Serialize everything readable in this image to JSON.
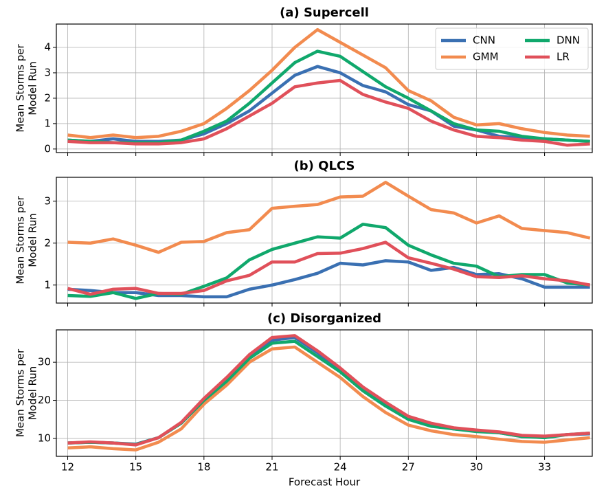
{
  "chart_data": [
    {
      "type": "line",
      "title": "(a) Supercell",
      "ylabel": [
        "Mean Storms per",
        "Model Run"
      ],
      "x": [
        12,
        13,
        14,
        15,
        16,
        17,
        18,
        19,
        20,
        21,
        22,
        23,
        24,
        25,
        26,
        27,
        28,
        29,
        30,
        31,
        32,
        33,
        34,
        35
      ],
      "xlim": [
        11.5,
        35.1
      ],
      "ylim": [
        -0.14,
        4.92
      ],
      "yticks": [
        0,
        1,
        2,
        3,
        4
      ],
      "grid": true,
      "legend": "upper right",
      "series": [
        {
          "name": "CNN",
          "color": "#3a70b2",
          "values": [
            0.35,
            0.3,
            0.4,
            0.3,
            0.3,
            0.35,
            0.6,
            1.0,
            1.5,
            2.2,
            2.9,
            3.25,
            3.0,
            2.5,
            2.25,
            1.75,
            1.5,
            0.9,
            0.75,
            0.5,
            0.45,
            0.4,
            0.35,
            0.3
          ]
        },
        {
          "name": "GMM",
          "color": "#f28b4f",
          "values": [
            0.55,
            0.45,
            0.55,
            0.45,
            0.5,
            0.7,
            1.0,
            1.6,
            2.3,
            3.1,
            4.0,
            4.7,
            4.2,
            3.7,
            3.2,
            2.3,
            1.9,
            1.25,
            0.95,
            1.0,
            0.8,
            0.65,
            0.55,
            0.5
          ]
        },
        {
          "name": "DNN",
          "color": "#10a86c",
          "values": [
            0.35,
            0.3,
            0.25,
            0.25,
            0.25,
            0.35,
            0.7,
            1.1,
            1.8,
            2.6,
            3.4,
            3.85,
            3.65,
            3.05,
            2.45,
            2.0,
            1.5,
            1.0,
            0.75,
            0.7,
            0.5,
            0.4,
            0.35,
            0.3
          ]
        },
        {
          "name": "LR",
          "color": "#e0505a",
          "values": [
            0.3,
            0.25,
            0.25,
            0.2,
            0.2,
            0.25,
            0.4,
            0.8,
            1.3,
            1.8,
            2.45,
            2.6,
            2.7,
            2.15,
            1.85,
            1.6,
            1.1,
            0.75,
            0.5,
            0.45,
            0.35,
            0.3,
            0.15,
            0.2
          ]
        }
      ]
    },
    {
      "type": "line",
      "title": "(b) QLCS",
      "ylabel": [
        "Mean Storms per",
        "Model Run"
      ],
      "x": [
        12,
        13,
        14,
        15,
        16,
        17,
        18,
        19,
        20,
        21,
        22,
        23,
        24,
        25,
        26,
        27,
        28,
        29,
        30,
        31,
        32,
        33,
        34,
        35
      ],
      "xlim": [
        11.5,
        35.1
      ],
      "ylim": [
        0.57,
        3.57
      ],
      "yticks": [
        1,
        2,
        3
      ],
      "grid": true,
      "series": [
        {
          "color": "#3a70b2",
          "values": [
            0.9,
            0.87,
            0.82,
            0.82,
            0.75,
            0.75,
            0.72,
            0.72,
            0.9,
            1.0,
            1.13,
            1.28,
            1.52,
            1.48,
            1.58,
            1.55,
            1.35,
            1.42,
            1.25,
            1.27,
            1.15,
            0.95,
            0.95,
            0.95
          ]
        },
        {
          "color": "#f28b4f",
          "values": [
            2.02,
            2.0,
            2.1,
            1.95,
            1.78,
            2.02,
            2.04,
            2.25,
            2.32,
            2.83,
            2.88,
            2.92,
            3.1,
            3.12,
            3.45,
            3.12,
            2.8,
            2.72,
            2.48,
            2.65,
            2.35,
            2.3,
            2.25,
            2.12
          ]
        },
        {
          "color": "#10a86c",
          "values": [
            0.75,
            0.73,
            0.82,
            0.68,
            0.8,
            0.78,
            0.97,
            1.17,
            1.6,
            1.85,
            2.0,
            2.15,
            2.12,
            2.45,
            2.37,
            1.95,
            1.72,
            1.52,
            1.45,
            1.2,
            1.25,
            1.25,
            1.05,
            1.0
          ]
        },
        {
          "color": "#e0505a",
          "values": [
            0.92,
            0.78,
            0.9,
            0.92,
            0.8,
            0.8,
            0.87,
            1.1,
            1.23,
            1.55,
            1.55,
            1.75,
            1.76,
            1.87,
            2.02,
            1.65,
            1.52,
            1.38,
            1.2,
            1.18,
            1.22,
            1.15,
            1.1,
            1.0
          ]
        }
      ]
    },
    {
      "type": "line",
      "title": "(c) Disorganized",
      "ylabel": [
        "Mean Storms per",
        "Model Run"
      ],
      "xlabel": "Forecast Hour",
      "x": [
        12,
        13,
        14,
        15,
        16,
        17,
        18,
        19,
        20,
        21,
        22,
        23,
        24,
        25,
        26,
        27,
        28,
        29,
        30,
        31,
        32,
        33,
        34,
        35
      ],
      "xlim": [
        11.5,
        35.1
      ],
      "xticks": [
        12,
        15,
        18,
        21,
        24,
        27,
        30,
        33
      ],
      "ylim": [
        5.3,
        38.5
      ],
      "yticks": [
        10,
        20,
        30
      ],
      "grid": true,
      "series": [
        {
          "color": "#3a70b2",
          "values": [
            8.8,
            9.0,
            8.8,
            8.5,
            10.2,
            14,
            20,
            25.5,
            31.5,
            35.8,
            36.5,
            32.5,
            28,
            23,
            19,
            15,
            13.5,
            12.5,
            12,
            11.5,
            10.5,
            10.5,
            11,
            11.2
          ]
        },
        {
          "color": "#f28b4f",
          "values": [
            7.5,
            7.8,
            7.3,
            7.0,
            9.0,
            12.5,
            19,
            24,
            30,
            33.5,
            34,
            30,
            26,
            21,
            16.8,
            13.5,
            12,
            11,
            10.5,
            9.8,
            9.2,
            9.0,
            9.6,
            10.2
          ]
        },
        {
          "color": "#10a86c",
          "values": [
            8.8,
            9.0,
            8.8,
            8.4,
            10.2,
            14,
            20,
            25,
            31,
            35,
            35.5,
            31.5,
            27.5,
            22.5,
            18.5,
            15,
            13.2,
            12.5,
            11.8,
            11.5,
            10.5,
            10.2,
            11,
            11.4
          ]
        },
        {
          "color": "#e0505a",
          "values": [
            8.8,
            9.1,
            8.8,
            8.3,
            10.2,
            14.2,
            20.5,
            26,
            32,
            36.5,
            37,
            33,
            28.5,
            23.5,
            19.5,
            15.8,
            14,
            12.8,
            12.2,
            11.7,
            10.8,
            10.6,
            11.0,
            11.4
          ]
        }
      ]
    }
  ]
}
